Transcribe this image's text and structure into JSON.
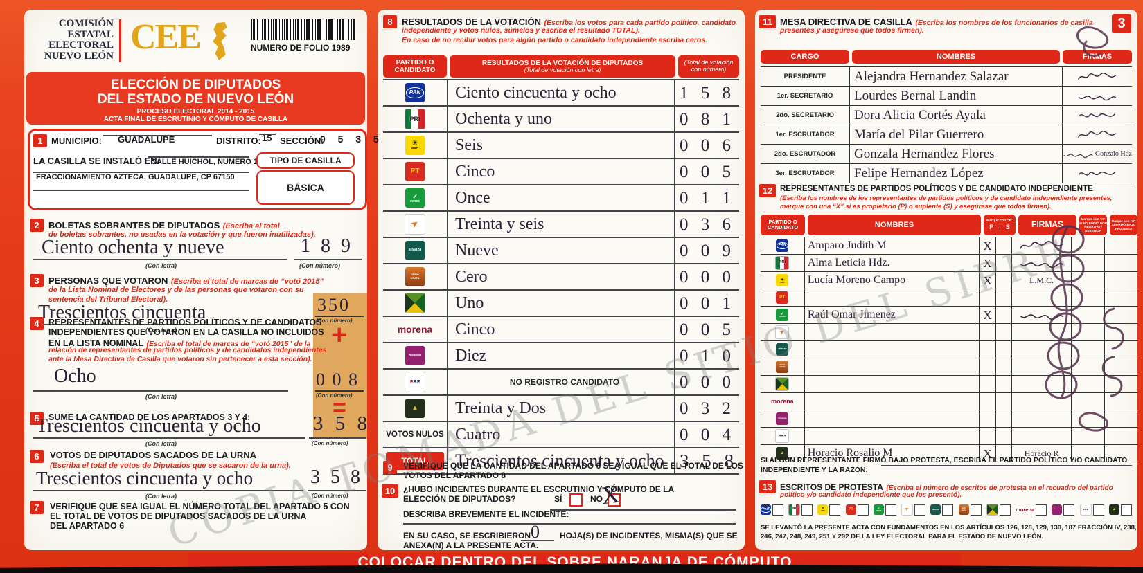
{
  "doc": {
    "watermark": "COPIA TOMADA DEL SITIO DEL SIPRE",
    "bottom_band": "COLOCAR DENTRO DEL SOBRE NARANJA DE CÓMPUTO",
    "page_number": "3",
    "con_letra": "(Con letra)",
    "con_numero": "(Con número)"
  },
  "header": {
    "commission": [
      "COMISIÓN",
      "ESTATAL",
      "ELECTORAL",
      "NUEVO LEÓN"
    ],
    "logo": "CEE",
    "folio": "NUMERO DE FOLIO 1989",
    "title1": "ELECCIÓN DE DIPUTADOS",
    "title2": "DEL ESTADO DE NUEVO LEÓN",
    "process": "PROCESO ELECTORAL  2014 - 2015",
    "acta": "ACTA FINAL DE ESCRUTINIO Y CÓMPUTO DE CASILLA"
  },
  "s1": {
    "n": "1",
    "municipio_l": "MUNICIPIO:",
    "municipio": "GUADALUPE",
    "distrito_l": "DISTRITO:",
    "distrito": "15",
    "seccion_l": "SECCIÓN:",
    "seccion": "0 5 3 5",
    "instalada_l": "LA CASILLA SE INSTALÓ EN:",
    "dir1": "CALLE HUICHOL, NÚMERO 128,",
    "dir2": "FRACCIONAMIENTO AZTECA, GUADALUPE, CP 67150",
    "tipo_l": "TIPO DE CASILLA",
    "tipo": "BÁSICA"
  },
  "s2": {
    "n": "2",
    "t": "BOLETAS SOBRANTES DE DIPUTADOS",
    "i1": "(Escriba el total",
    "i2": "de boletas sobrantes, no usadas en la votación y que fueron inutilizadas).",
    "letra": "Ciento ochenta y nueve",
    "num": "1 8 9"
  },
  "s3": {
    "n": "3",
    "t": "PERSONAS QUE VOTARON",
    "i1": "(Escriba el total de marcas de “votó 2015”",
    "i2": "de la Lista Nominal de Electores y de las personas que votaron con su",
    "i3": "sentencia del Tribunal Electoral).",
    "letra": "Trescientos cincuenta",
    "num": "350"
  },
  "s4": {
    "n": "4",
    "t1": "REPRESENTANTES DE PARTIDOS POLÍTICOS Y DE CANDIDATOS",
    "t2": "INDEPENDIENTES QUE VOTARON EN LA CASILLA NO INCLUIDOS",
    "t3": "EN LA LISTA NOMINAL",
    "i1": "(Escriba el total de marcas de “votó 2015” de la",
    "i2": "relación de representantes de partidos políticos y de candidatos independientes",
    "i3": "ante la Mesa Directiva de Casilla que votaron sin pertenecer a esta sección).",
    "letra": "Ocho",
    "num": "0 0 8",
    "plus": "+",
    "equals": "="
  },
  "s5": {
    "n": "5",
    "t": "SUME LA CANTIDAD DE LOS APARTADOS 3 Y 4:",
    "letra": "Trescientos cincuenta y ocho",
    "num": "3 5 8"
  },
  "s6": {
    "n": "6",
    "t": "VOTOS DE DIPUTADOS SACADOS DE LA URNA",
    "i1": "(Escriba el total de votos de Diputados que se sacaron de la urna).",
    "letra": "Trescientos cincuenta y ocho",
    "num": "3 5 8"
  },
  "s7": {
    "n": "7",
    "l1": "VERIFIQUE QUE SEA IGUAL EL NÚMERO TOTAL DEL APARTADO 5 CON",
    "l2": "EL TOTAL DE VOTOS DE DIPUTADOS SACADOS DE LA URNA",
    "l3": "DEL APARTADO 6"
  },
  "s8": {
    "n": "8",
    "t": "RESULTADOS DE LA VOTACIÓN",
    "i1": "(Escriba los votos para cada partido político, candidato",
    "i2": "independiente y votos nulos, súmelos y escriba el resultado TOTAL).",
    "i3": "En caso de no recibir votos para algún partido o candidato independiente escriba ceros.",
    "h1a": "PARTIDO O",
    "h1b": "CANDIDATO",
    "h2": "RESULTADOS DE LA VOTACIÓN DE DIPUTADOS",
    "h2b": "(Total de votación con letra)",
    "h3": "(Total de votación",
    "h3b": "con número)",
    "nulos_label": "VOTOS NULOS",
    "total_label": "TOTAL",
    "rows": [
      {
        "logo": "pan",
        "letra": "Ciento cincuenta y ocho",
        "num": "1 5 8"
      },
      {
        "logo": "pri",
        "letra": "Ochenta y uno",
        "num": "0 8 1"
      },
      {
        "logo": "prd",
        "letra": "Seis",
        "num": "0 0 6"
      },
      {
        "logo": "pt",
        "letra": "Cinco",
        "num": "0 0 5"
      },
      {
        "logo": "verde",
        "letra": "Once",
        "num": "0 1 1"
      },
      {
        "logo": "mc",
        "letra": "Treinta y seis",
        "num": "0 3 6"
      },
      {
        "logo": "alianza",
        "letra": "Nueve",
        "num": "0 0 9"
      },
      {
        "logo": "democrata",
        "letra": "Cero",
        "num": "0 0 0"
      },
      {
        "logo": "cruzada",
        "letra": "Uno",
        "num": "0 0 1"
      },
      {
        "logo": "morena",
        "letra": "Cinco",
        "num": "0 0 5"
      },
      {
        "logo": "humanista",
        "letra": "Diez",
        "num": "0 1 0"
      },
      {
        "logo": "encuentro",
        "printed": true,
        "letra": "NO REGISTRO CANDIDATO",
        "num": "0 0 0"
      },
      {
        "logo": "indep",
        "letra": "Treinta y Dos",
        "num": "0 3 2"
      },
      {
        "type": "nulos",
        "letra": "Cuatro",
        "num": "0 0 4"
      },
      {
        "type": "total",
        "letra": "Trescientos cincuenta y ocho",
        "num": "3 5 8"
      }
    ]
  },
  "s9": {
    "n": "9",
    "l1": "VERIFIQUE QUE LA CANTIDAD DEL APARTADO 6 SEA IGUAL QUE EL TOTAL DE LOS",
    "l2": "VOTOS DEL APARTADO 8"
  },
  "s10": {
    "n": "10",
    "l1": "¿HUBO INCIDENTES DURANTE EL ESCRUTINIO Y CÓMPUTO DE LA",
    "l2": "ELECCIÓN DE DIPUTADOS?",
    "si": "SÍ",
    "no": "NO",
    "mark": "X",
    "desc": "DESCRIBA BREVEMENTE EL INCIDENTE:",
    "caso1": "EN SU CASO, SE ESCRIBIERON",
    "hojas": "0",
    "caso2": "HOJA(S) DE INCIDENTES, MISMA(S) QUE SE",
    "caso3": "ANEXA(N) A LA PRESENTE ACTA."
  },
  "s11": {
    "n": "11",
    "t": "MESA DIRECTIVA DE CASILLA",
    "i1": "(Escriba los nombres de los funcionarios de casilla",
    "i2": "presentes y asegúrese que todos firmen).",
    "h": [
      "CARGO",
      "NOMBRES",
      "FIRMAS"
    ],
    "rows": [
      {
        "cargo": "PRESIDENTE",
        "nombre": "Alejandra Hernandez Salazar"
      },
      {
        "cargo": "1er. SECRETARIO",
        "nombre": "Lourdes Bernal Landin"
      },
      {
        "cargo": "2do. SECRETARIO",
        "nombre": "Dora Alicia Cortés Ayala"
      },
      {
        "cargo": "1er. ESCRUTADOR",
        "nombre": "María del Pilar Guerrero"
      },
      {
        "cargo": "2do. ESCRUTADOR",
        "nombre": "Gonzala Hernandez Flores",
        "firma": "Gonzalo Hdz"
      },
      {
        "cargo": "3er. ESCRUTADOR",
        "nombre": "Felipe Hernandez López"
      }
    ]
  },
  "s12": {
    "n": "12",
    "t": "REPRESENTANTES DE PARTIDOS POLÍTICOS Y DE CANDIDATO INDEPENDIENTE",
    "i1": "(Escriba los nombres de los representantes de partidos políticos y de candidato independiente presentes,",
    "i2": "marque con una “X” si es propietario (P) o suplente (S) y asegúrese que todos firmen).",
    "h1a": "PARTIDO O",
    "h1b": "CANDIDATO",
    "h2": "NOMBRES",
    "hx": "Marque con “X”",
    "hp": "P",
    "hs": "S",
    "hf": "FIRMAS",
    "h5": "Marque con “X” SI NO FIRMÓ POR NEGATIVA / AUSENCIA",
    "h6": "Marque con “X” SI FIRMÓ BAJO PROTESTA",
    "rows": [
      {
        "logo": "pan",
        "nombre": "Amparo Judith M",
        "p": "X",
        "sig": true
      },
      {
        "logo": "pri",
        "nombre": "Alma Leticia Hdz.",
        "p": "X",
        "sig": true
      },
      {
        "logo": "prd",
        "nombre": "Lucía Moreno Campo",
        "p": "X",
        "firma": "L.M.C."
      },
      {
        "logo": "pt"
      },
      {
        "logo": "verde",
        "nombre": "Raúl Omar Jimenez",
        "p": "X",
        "sig": true
      },
      {
        "logo": "mc"
      },
      {
        "logo": "alianza"
      },
      {
        "logo": "democrata"
      },
      {
        "logo": "cruzada"
      },
      {
        "logo": "morena"
      },
      {
        "logo": "humanista"
      },
      {
        "logo": "encuentro"
      },
      {
        "logo": "indep",
        "nombre": "Horacio Rosalio M",
        "p": "X",
        "firma": "Horacio R"
      }
    ],
    "protest1": "SI ALGÚN REPRESENTANTE FIRMÓ BAJO PROTESTA, ESCRIBA EL PARTIDO POLÍTICO Y/O CANDIDATO",
    "protest2": "INDEPENDIENTE Y LA RAZÓN:"
  },
  "s13": {
    "n": "13",
    "t": "ESCRITOS DE PROTESTA",
    "i1": "(Escriba el número de escritos de protesta en el recuadro del partido",
    "i2": "político y/o candidato independiente que los presentó).",
    "logos": [
      "pan",
      "pri",
      "prd",
      "pt",
      "verde",
      "mc",
      "alianza",
      "democrata",
      "cruzada",
      "morena",
      "humanista",
      "encuentro",
      "indep"
    ],
    "legal1": "SE LEVANTÓ LA PRESENTE ACTA CON FUNDAMENTOS EN LOS ARTÍCULOS 126, 128, 129, 130, 187 FRACCIÓN IV, 238,",
    "legal2": "246, 247, 248, 249, 251 Y 292 DE LA LEY ELECTORAL PARA EL ESTADO DE NUEVO LEÓN."
  },
  "parties": {
    "pan": "PAN",
    "pri": "PRI",
    "prd": "PRD",
    "pt": "PT",
    "verde": "VERDE",
    "mc": "MOVIMIENTO CIUDADANO",
    "alianza": "alianza",
    "democrata": "DEMÓCRATA",
    "cruzada": "CRUZADA CIUDADANA",
    "morena": "morena",
    "humanista": "Humanista",
    "encuentro": "encuentro social",
    "indep": "CANDIDATO INDEPENDIENTE"
  },
  "colors": {
    "red": "#df2817",
    "orange_box": "#dd9f50",
    "gold": "#e2a41a",
    "ink": "#2a2135"
  }
}
